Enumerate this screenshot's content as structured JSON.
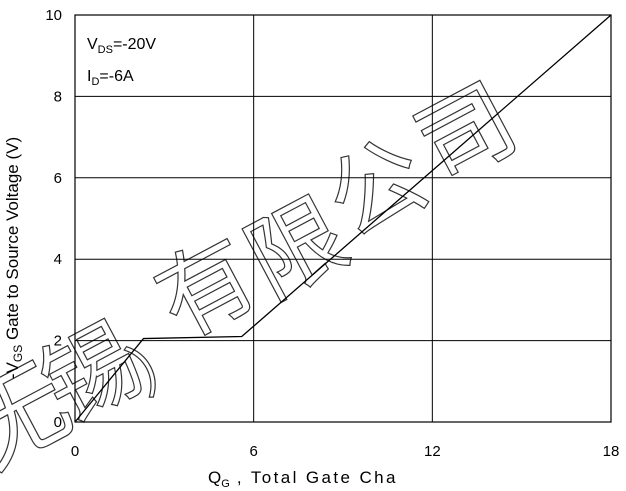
{
  "chart_data": {
    "type": "line",
    "xlabel": "Q",
    "xlabel_sub": "G",
    "xlabel_rest": " , Total Gate Cha",
    "ylabel_prefix": "-V",
    "ylabel_sub": "GS",
    "ylabel_rest": " Gate to Source Voltage (V)",
    "xlim": [
      0,
      18
    ],
    "ylim": [
      0,
      10
    ],
    "x_ticks": [
      0,
      6,
      12,
      18
    ],
    "y_ticks": [
      0,
      2,
      4,
      6,
      8,
      10
    ],
    "grid": true,
    "series": [
      {
        "x": [
          0,
          2.3,
          5.6,
          18
        ],
        "y": [
          0,
          2.05,
          2.1,
          10
        ]
      }
    ],
    "annotations": [
      {
        "prefix": "V",
        "sub": "DS",
        "rest": "=-20V"
      },
      {
        "prefix": "I",
        "sub": "D",
        "rest": "=-6A"
      }
    ],
    "watermark": "无锡）有限公司"
  }
}
